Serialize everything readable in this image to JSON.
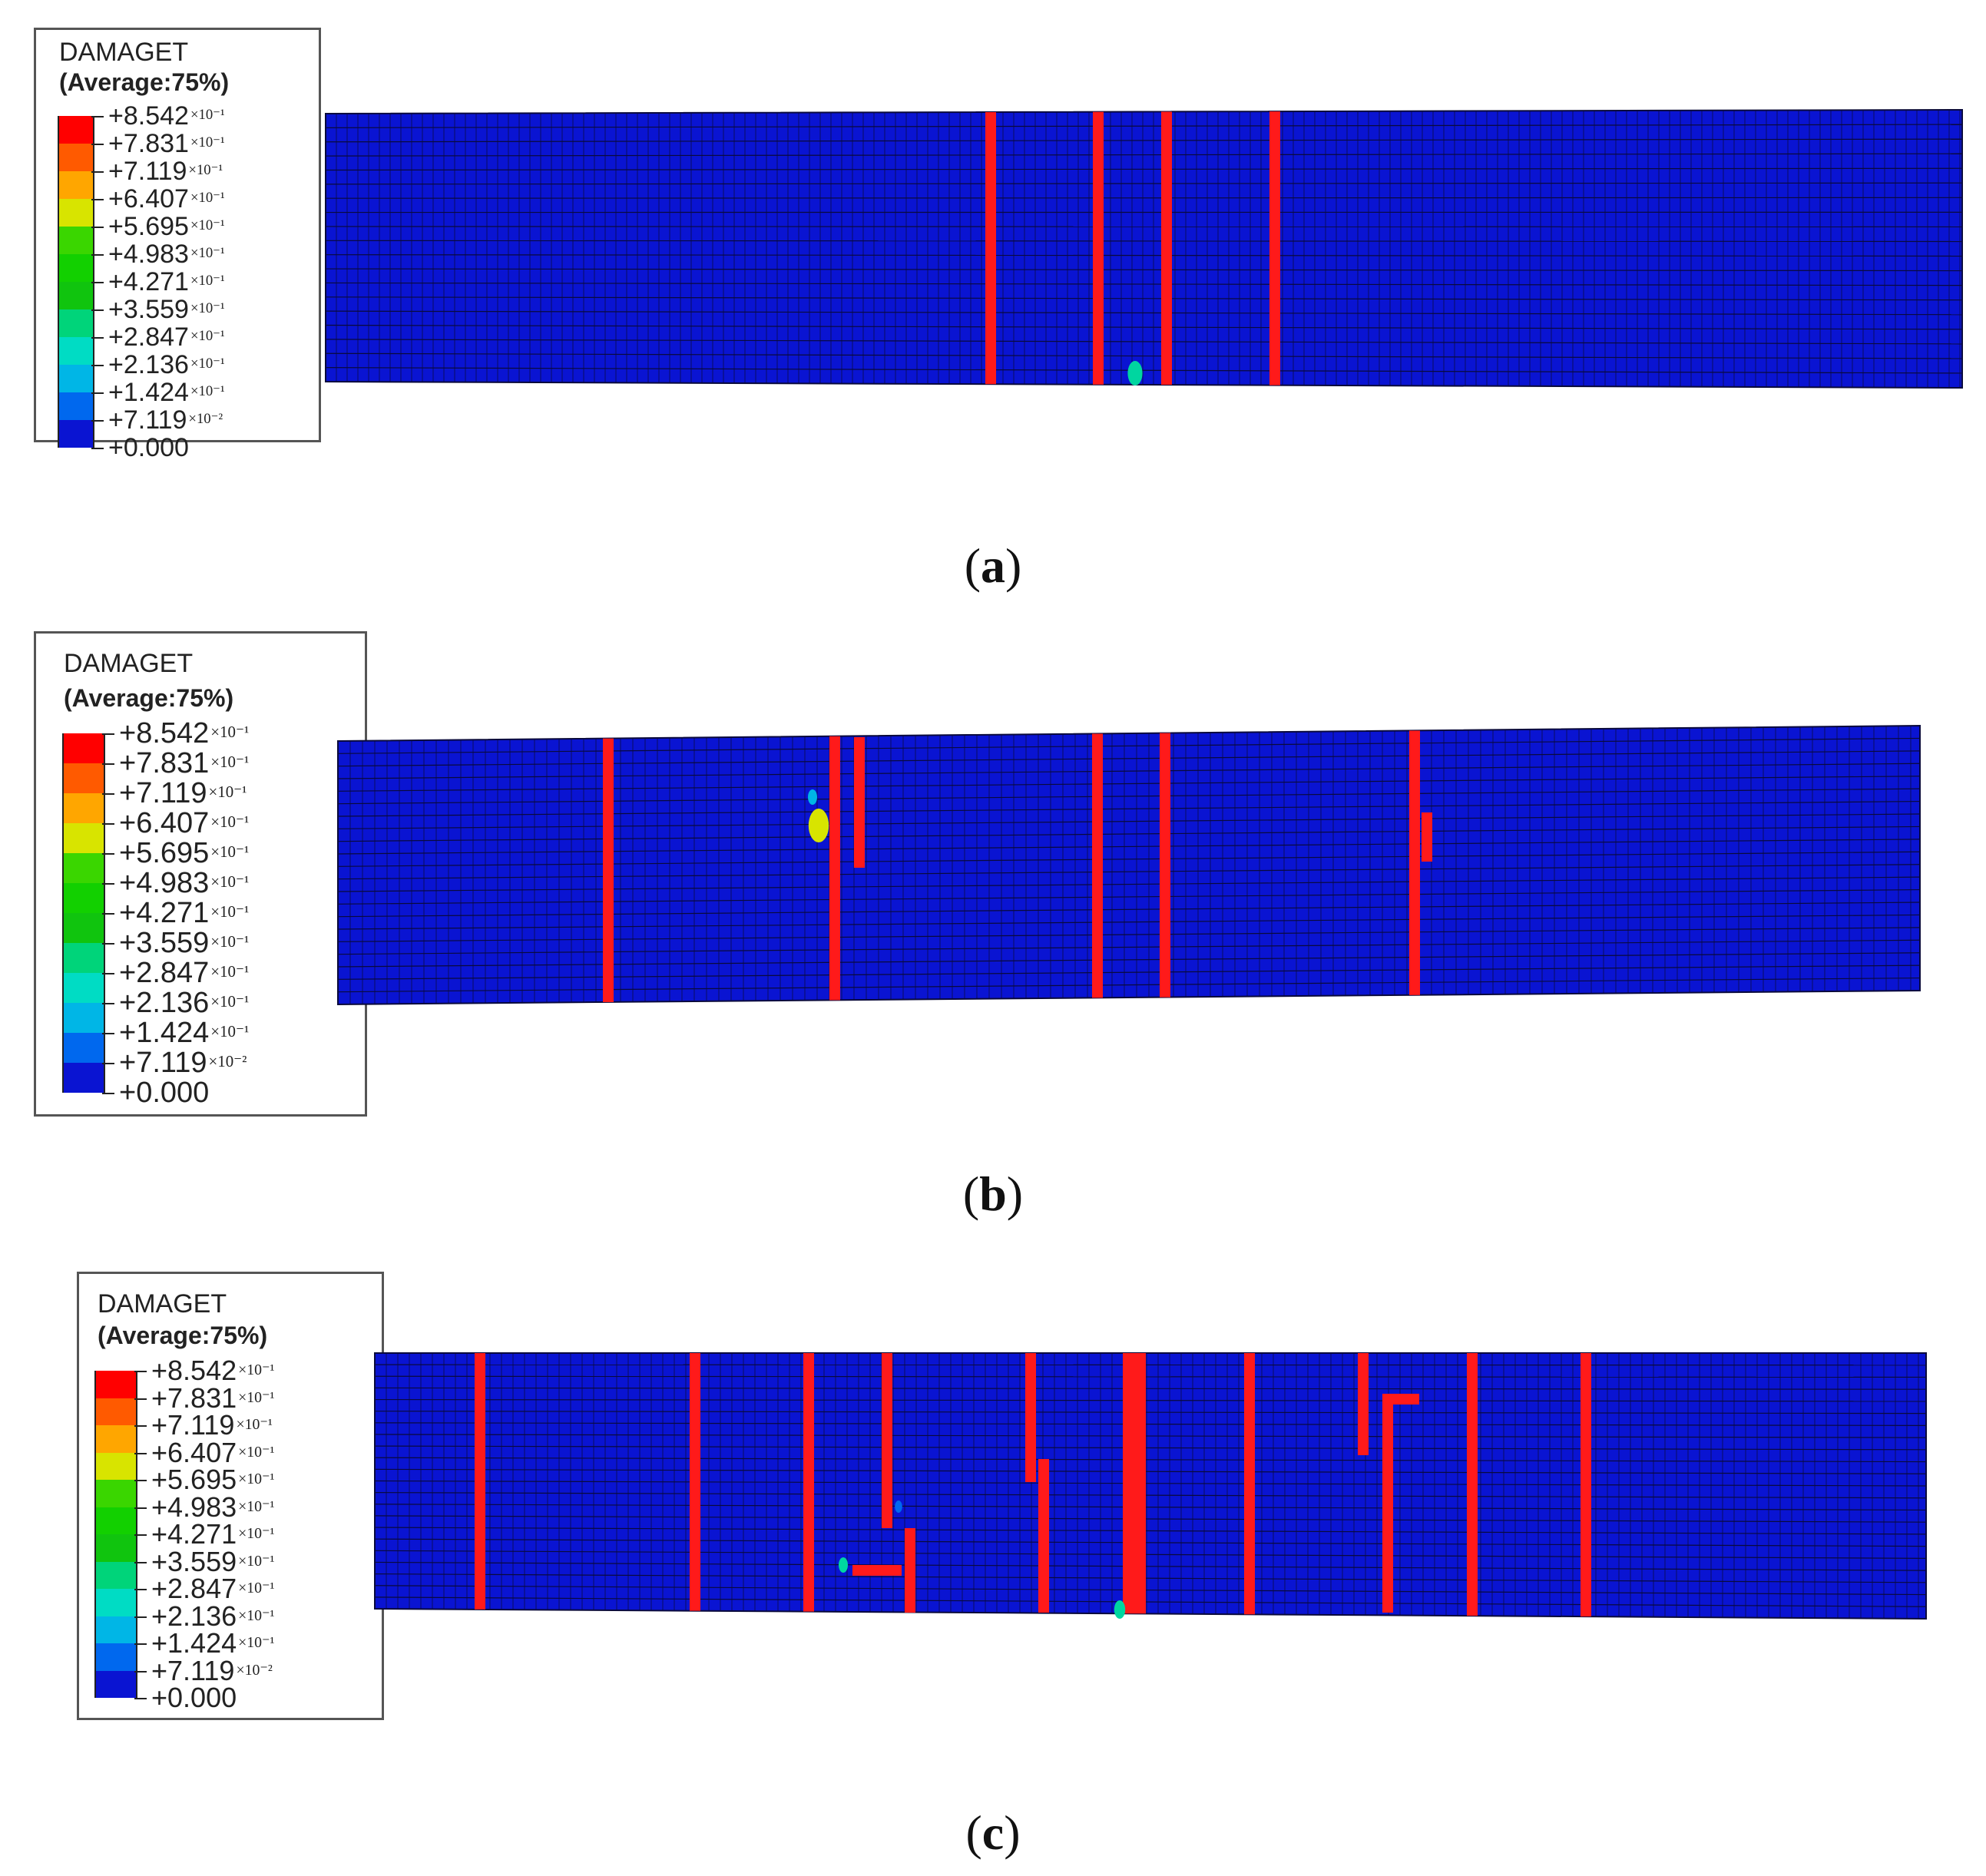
{
  "colors": {
    "background": "#ffffff",
    "undamaged": "#0a14d2",
    "mesh_line": "#0a0a3c",
    "crack": "#ff1a1a"
  },
  "legend": {
    "title": "DAMAGET",
    "subtitle": "(Average:75%)",
    "entries": [
      {
        "mantissa": "+8.542",
        "exponent": "×10⁻¹"
      },
      {
        "mantissa": "+7.831",
        "exponent": "×10⁻¹"
      },
      {
        "mantissa": "+7.119",
        "exponent": "×10⁻¹"
      },
      {
        "mantissa": "+6.407",
        "exponent": "×10⁻¹"
      },
      {
        "mantissa": "+5.695",
        "exponent": "×10⁻¹"
      },
      {
        "mantissa": "+4.983",
        "exponent": "×10⁻¹"
      },
      {
        "mantissa": "+4.271",
        "exponent": "×10⁻¹"
      },
      {
        "mantissa": "+3.559",
        "exponent": "×10⁻¹"
      },
      {
        "mantissa": "+2.847",
        "exponent": "×10⁻¹"
      },
      {
        "mantissa": "+2.136",
        "exponent": "×10⁻¹"
      },
      {
        "mantissa": "+1.424",
        "exponent": "×10⁻¹"
      },
      {
        "mantissa": "+7.119",
        "exponent": "×10⁻²"
      },
      {
        "mantissa": "+0.000",
        "exponent": ""
      }
    ],
    "swatch_colors": [
      "#ff0000",
      "#ff5a00",
      "#ffa600",
      "#d8e400",
      "#3ad600",
      "#12d000",
      "#10c40e",
      "#00d47a",
      "#00dcc4",
      "#00b6e6",
      "#0068ee",
      "#0a14d2"
    ]
  },
  "panels": [
    {
      "caption": "(a)"
    },
    {
      "caption": "(b)"
    },
    {
      "caption": "(c)"
    }
  ]
}
